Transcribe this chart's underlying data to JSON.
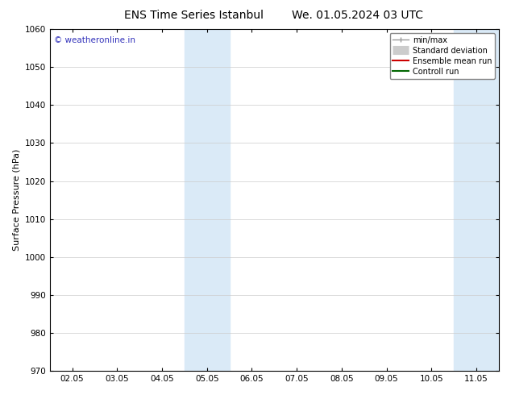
{
  "title_left": "ENS Time Series Istanbul",
  "title_right": "We. 01.05.2024 03 UTC",
  "ylabel": "Surface Pressure (hPa)",
  "ylim": [
    970,
    1060
  ],
  "yticks": [
    970,
    980,
    990,
    1000,
    1010,
    1020,
    1030,
    1040,
    1050,
    1060
  ],
  "xlim_start": -0.5,
  "xlim_end": 9.5,
  "xtick_labels": [
    "02.05",
    "03.05",
    "04.05",
    "05.05",
    "06.05",
    "07.05",
    "08.05",
    "09.05",
    "10.05",
    "11.05"
  ],
  "xtick_positions": [
    0,
    1,
    2,
    3,
    4,
    5,
    6,
    7,
    8,
    9
  ],
  "shaded_regions": [
    {
      "xmin": 2.5,
      "xmax": 3.5,
      "color": "#daeaf7"
    },
    {
      "xmin": 8.5,
      "xmax": 9.5,
      "color": "#daeaf7"
    }
  ],
  "watermark_text": "© weatheronline.in",
  "watermark_color": "#3333bb",
  "legend_entries": [
    {
      "label": "min/max",
      "color": "#999999",
      "lw": 1.0,
      "ls": "-",
      "type": "line_with_caps"
    },
    {
      "label": "Standard deviation",
      "color": "#cccccc",
      "lw": 8,
      "ls": "-",
      "type": "thick"
    },
    {
      "label": "Ensemble mean run",
      "color": "#cc0000",
      "lw": 1.5,
      "ls": "-",
      "type": "line"
    },
    {
      "label": "Controll run",
      "color": "#006600",
      "lw": 1.5,
      "ls": "-",
      "type": "line"
    }
  ],
  "background_color": "#ffffff",
  "grid_color": "#cccccc",
  "title_fontsize": 10,
  "tick_fontsize": 7.5,
  "ylabel_fontsize": 8,
  "watermark_fontsize": 7.5
}
